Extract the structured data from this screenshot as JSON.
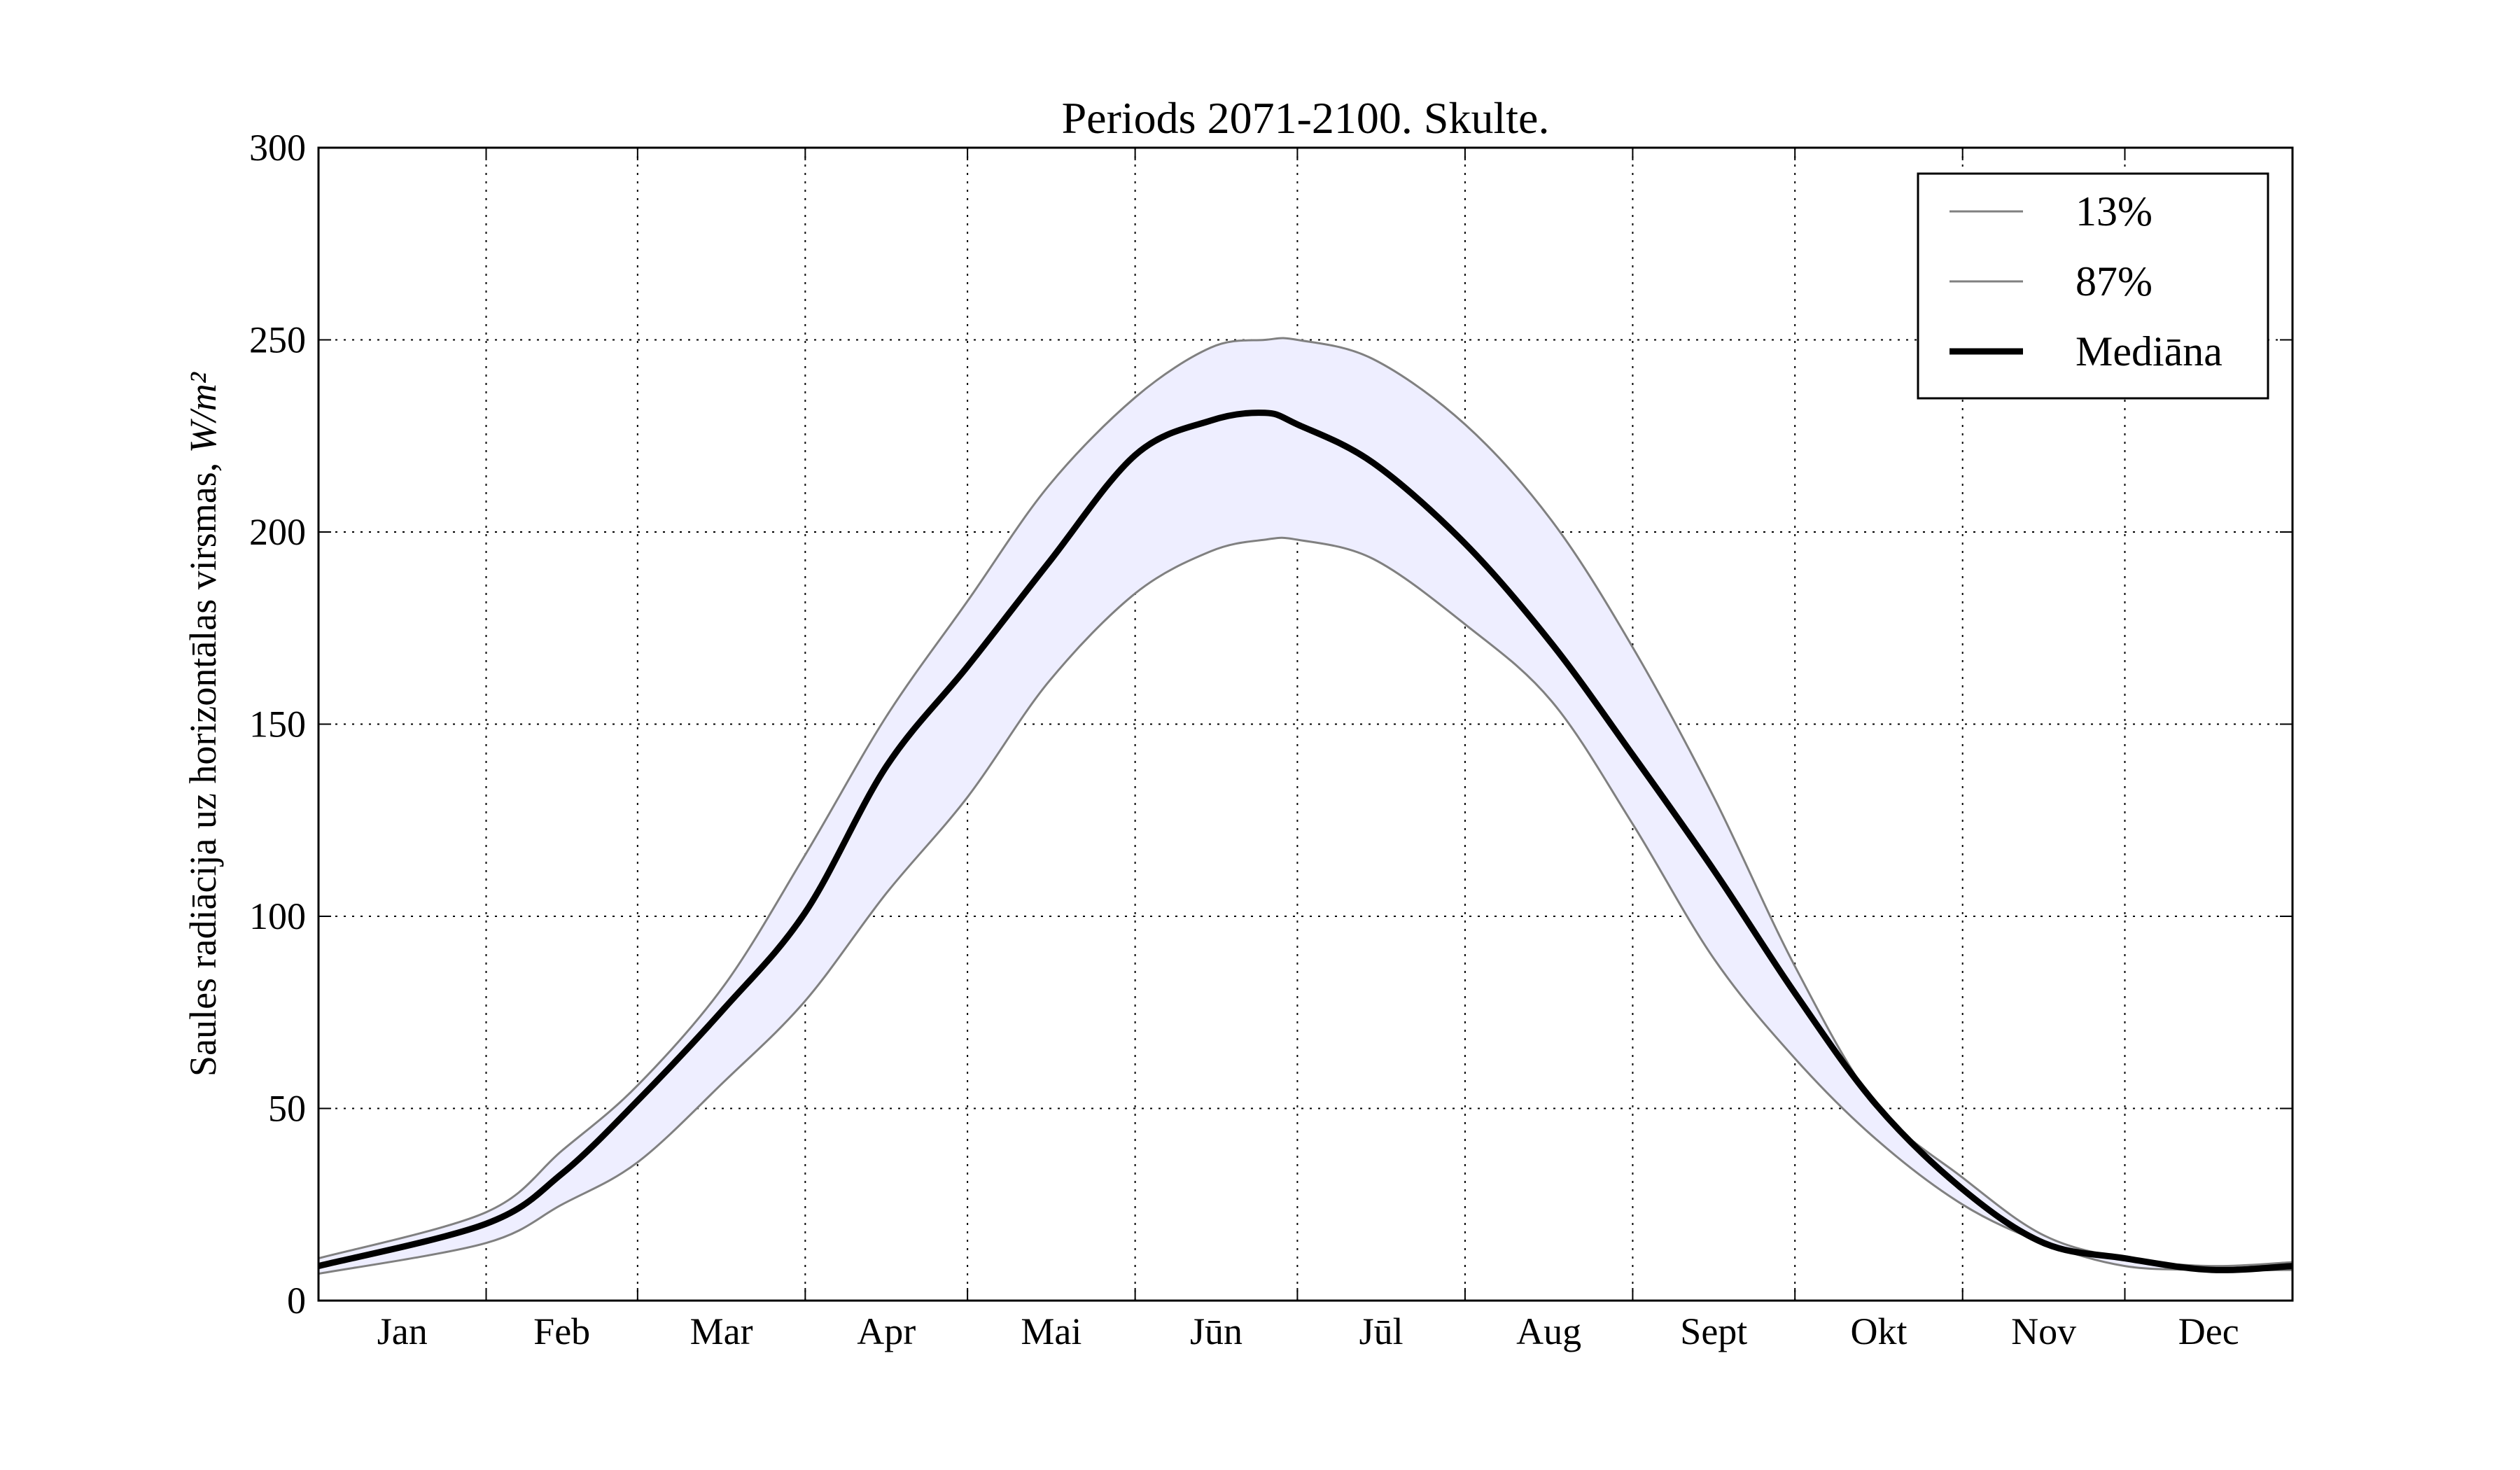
{
  "chart_data": {
    "type": "line",
    "title": "Periods 2071-2100. Skulte.",
    "ylabel": "Saules radiācija uz horizontālas virsmas, ",
    "ylabel_unit": "W/m²",
    "xlabel": "",
    "xlim": [
      0,
      365
    ],
    "ylim": [
      0,
      300
    ],
    "yticks": [
      0,
      50,
      100,
      150,
      200,
      250,
      300
    ],
    "month_boundaries": [
      31,
      59,
      90,
      120,
      151,
      181,
      212,
      243,
      273,
      304,
      334
    ],
    "xtick_labels": [
      "Jan",
      "Feb",
      "Mar",
      "Apr",
      "Mai",
      "Jūn",
      "Jūl",
      "Aug",
      "Sept",
      "Okt",
      "Nov",
      "Dec"
    ],
    "grid": true,
    "legend_placement": "top-right",
    "fill_between": {
      "lower": "13%",
      "upper": "87%",
      "color": "#eeeeff"
    },
    "x": [
      0,
      31,
      45,
      59,
      75,
      90,
      105,
      120,
      135,
      151,
      165,
      175,
      181,
      195,
      212,
      228,
      243,
      258,
      273,
      288,
      304,
      319,
      334,
      350,
      365
    ],
    "series": [
      {
        "name": "13%",
        "color": "#808080",
        "values": [
          7,
          15,
          25,
          36,
          57,
          78,
          106,
          131,
          161,
          184,
          195,
          198,
          198,
          193,
          176,
          156,
          124,
          89,
          63,
          42,
          25,
          15,
          9,
          8,
          8
        ]
      },
      {
        "name": "87%",
        "color": "#808080",
        "values": [
          11,
          23,
          39,
          56,
          82,
          116,
          152,
          182,
          212,
          235,
          248,
          250,
          250,
          245,
          228,
          203,
          170,
          131,
          87,
          51,
          32,
          17,
          11,
          9,
          10
        ]
      },
      {
        "name": "Mediāna",
        "color": "#000000",
        "values": [
          9,
          20,
          33,
          52,
          76,
          101,
          139,
          165,
          192,
          220,
          229,
          231,
          228,
          218,
          197,
          171,
          142,
          112,
          80,
          51,
          29,
          15,
          11,
          8,
          9
        ]
      }
    ]
  }
}
